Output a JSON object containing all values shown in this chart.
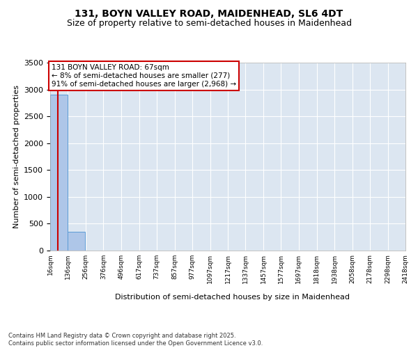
{
  "title": "131, BOYN VALLEY ROAD, MAIDENHEAD, SL6 4DT",
  "subtitle": "Size of property relative to semi-detached houses in Maidenhead",
  "xlabel": "Distribution of semi-detached houses by size in Maidenhead",
  "ylabel": "Number of semi-detached properties",
  "bin_edges": [
    16,
    136,
    256,
    376,
    496,
    617,
    737,
    857,
    977,
    1097,
    1217,
    1337,
    1457,
    1577,
    1697,
    1818,
    1938,
    2058,
    2178,
    2298,
    2418
  ],
  "bar_heights": [
    2900,
    350,
    5,
    2,
    1,
    1,
    0,
    0,
    0,
    0,
    0,
    0,
    0,
    0,
    0,
    0,
    0,
    0,
    0,
    0
  ],
  "bar_color": "#aec6e8",
  "bar_edge_color": "#5b9bd5",
  "property_size": 67,
  "property_line_color": "#cc0000",
  "annotation_text": "131 BOYN VALLEY ROAD: 67sqm\n← 8% of semi-detached houses are smaller (277)\n91% of semi-detached houses are larger (2,968) →",
  "annotation_box_color": "#cc0000",
  "ylim": [
    0,
    3500
  ],
  "yticks": [
    0,
    500,
    1000,
    1500,
    2000,
    2500,
    3000,
    3500
  ],
  "footer_text": "Contains HM Land Registry data © Crown copyright and database right 2025.\nContains public sector information licensed under the Open Government Licence v3.0.",
  "background_color": "#ffffff",
  "plot_background_color": "#dce6f1",
  "grid_color": "#ffffff",
  "title_fontsize": 10,
  "subtitle_fontsize": 9
}
